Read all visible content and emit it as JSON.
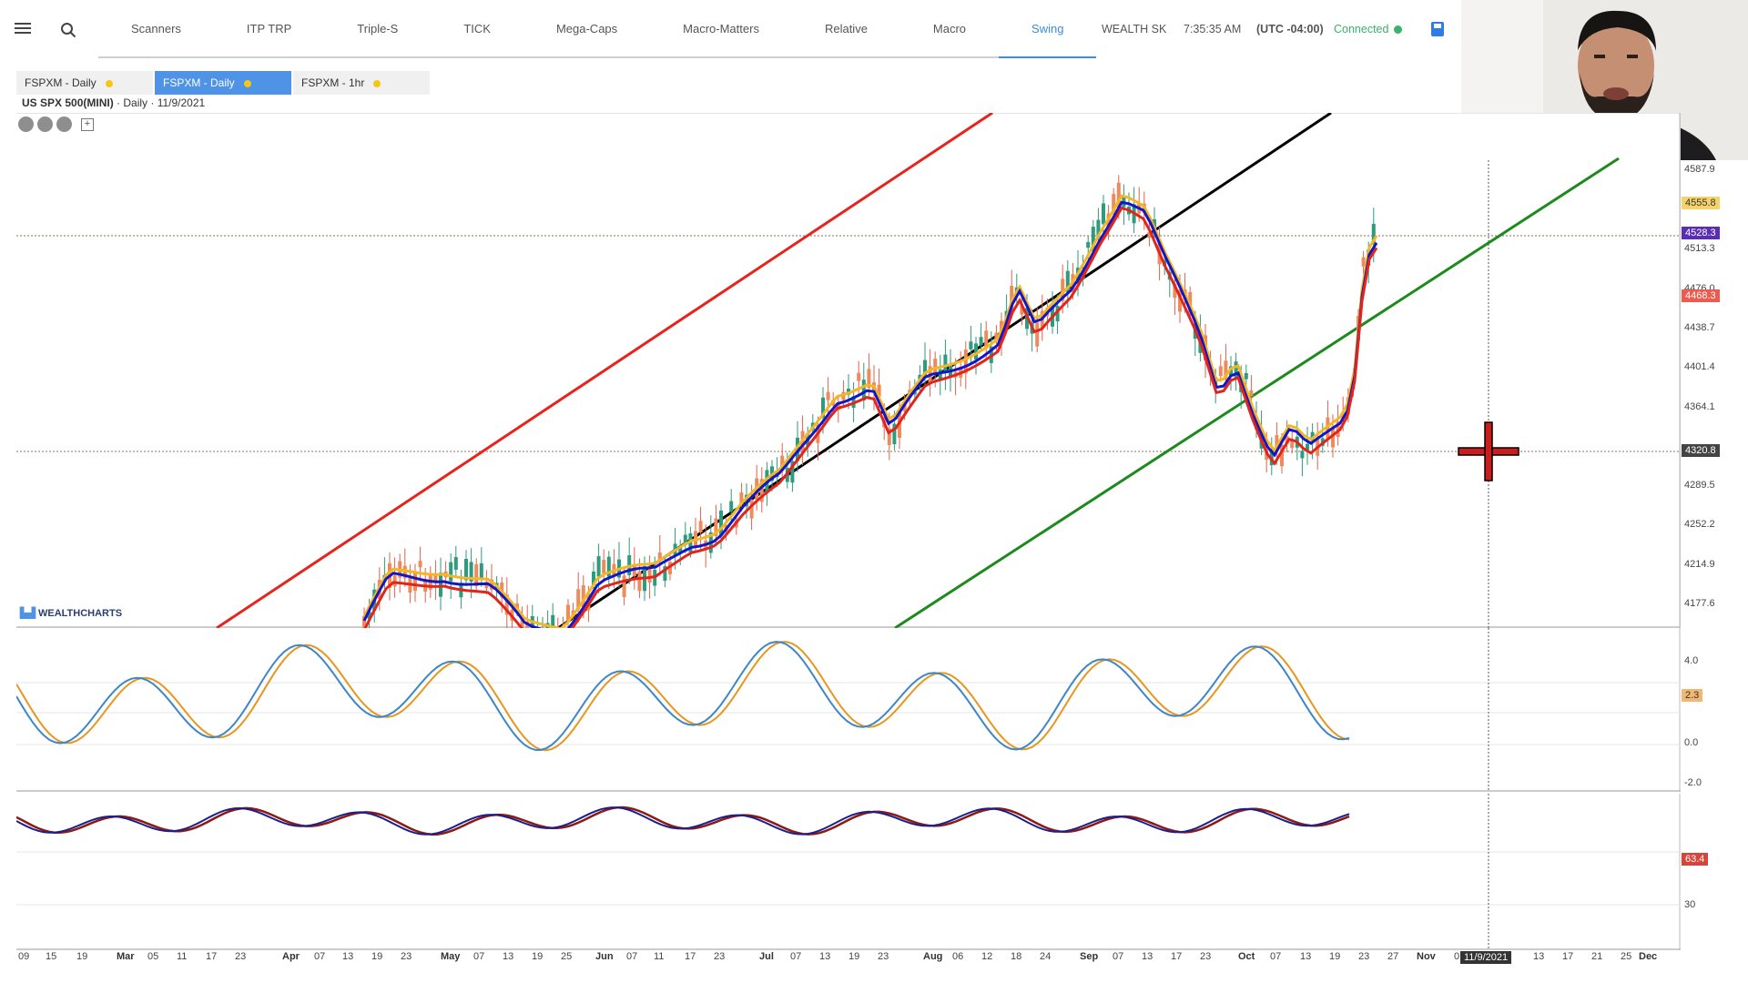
{
  "nav": {
    "tabs": [
      "Scanners",
      "ITP TRP",
      "Triple-S",
      "TICK",
      "Mega-Caps",
      "Macro-Matters",
      "Relative",
      "Macro",
      "Swing"
    ],
    "active_tab": "Swing"
  },
  "status": {
    "account": "WEALTH SK",
    "time": "7:35:35 AM",
    "timezone": "(UTC -04:00)",
    "connection": "Connected"
  },
  "subtabs": [
    "FSPXM - Daily",
    "FSPXM - Daily",
    "FSPXM - 1hr"
  ],
  "symbol": {
    "name": "US SPX 500(MINI)",
    "meta": "· Daily · 11/9/2021"
  },
  "logo": "WEALTHCHARTS",
  "price_axis": [
    "4587.9",
    "4513.3",
    "4476.0",
    "4438.7",
    "4401.4",
    "4364.1",
    "4289.5",
    "4252.2",
    "4214.9",
    "4177.6"
  ],
  "price_tags": {
    "yellow": "4555.8",
    "purple": "4528.3",
    "red": "4468.3",
    "cross": "4320.8"
  },
  "osc1_axis": [
    "4.0",
    "0.0",
    "-2.0"
  ],
  "osc1_tag": "2.3",
  "osc2_axis": [
    "30"
  ],
  "osc2_tag": "63.4",
  "x_axis": [
    "09",
    "15",
    "19",
    "Mar",
    "05",
    "11",
    "17",
    "23",
    "Apr",
    "07",
    "13",
    "19",
    "23",
    "May",
    "07",
    "13",
    "19",
    "25",
    "Jun",
    "07",
    "11",
    "17",
    "23",
    "Jul",
    "07",
    "13",
    "19",
    "23",
    "Aug",
    "06",
    "12",
    "18",
    "24",
    "Sep",
    "07",
    "13",
    "17",
    "23",
    "Oct",
    "07",
    "13",
    "19",
    "23",
    "27",
    "Nov",
    "0",
    "13",
    "17",
    "21",
    "25",
    "Dec"
  ],
  "crosshair_date": "11/9/2021",
  "colors": {
    "accent": "#3a8de0",
    "red_line": "#e8231c",
    "black_line": "#000000",
    "green_line": "#1d8a1d",
    "ema_blue": "#1515c8",
    "ema_red": "#e0251d",
    "ema_yellow": "#f2b724"
  }
}
